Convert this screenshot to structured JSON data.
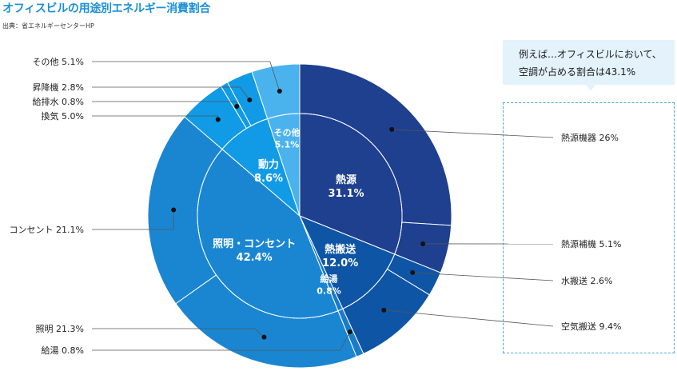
{
  "title": "オフィスビルの用途別エネルギー消費割合",
  "source": "出典：省エネルギーセンターHP",
  "callout": {
    "line1": "例えば…オフィスビルにおいて、",
    "line2": "空調が占める割合は43.1%"
  },
  "chart_data": {
    "type": "pie",
    "subtype": "nested-donut",
    "start": "12 o'clock, clockwise",
    "inner": [
      {
        "label": "熱源",
        "value": 31.1,
        "color": "#1f3f8f"
      },
      {
        "label": "熱搬送",
        "value": 12.0,
        "color": "#0f55a6"
      },
      {
        "label": "給湯",
        "value": 0.8,
        "color": "#1a7bc8"
      },
      {
        "label": "照明・コンセント",
        "value": 42.4,
        "color": "#1a86d2"
      },
      {
        "label": "動力",
        "value": 8.6,
        "color": "#119ae6"
      },
      {
        "label": "その他",
        "value": 5.1,
        "color": "#4ab3ee"
      }
    ],
    "outer": [
      {
        "label": "熱源機器",
        "value": 26,
        "display": "熱源機器 26%",
        "group": "熱源",
        "color": "#1f3f8f",
        "side": "right"
      },
      {
        "label": "熱源補機",
        "value": 5.1,
        "display": "熱源補機 5.1%",
        "group": "熱源",
        "color": "#1f3f8f",
        "side": "right"
      },
      {
        "label": "水搬送",
        "value": 2.6,
        "display": "水搬送 2.6%",
        "group": "熱搬送",
        "color": "#0f55a6",
        "side": "right"
      },
      {
        "label": "空気搬送",
        "value": 9.4,
        "display": "空気搬送 9.4%",
        "group": "熱搬送",
        "color": "#0f55a6",
        "side": "right"
      },
      {
        "label": "給湯",
        "value": 0.8,
        "display": "給湯 0.8%",
        "group": "給湯",
        "color": "#1a7bc8",
        "side": "left"
      },
      {
        "label": "照明",
        "value": 21.3,
        "display": "照明 21.3%",
        "group": "照明・コンセント",
        "color": "#1a86d2",
        "side": "left"
      },
      {
        "label": "コンセント",
        "value": 21.1,
        "display": "コンセント 21.1%",
        "group": "照明・コンセント",
        "color": "#1a86d2",
        "side": "left"
      },
      {
        "label": "換気",
        "value": 5.0,
        "display": "換気 5.0%",
        "group": "動力",
        "color": "#119ae6",
        "side": "left"
      },
      {
        "label": "給排水",
        "value": 0.8,
        "display": "給排水 0.8%",
        "group": "動力",
        "color": "#119ae6",
        "side": "left"
      },
      {
        "label": "昇降機",
        "value": 2.8,
        "display": "昇降機 2.8%",
        "group": "動力",
        "color": "#119ae6",
        "side": "left"
      },
      {
        "label": "その他",
        "value": 5.1,
        "display": "その他 5.1%",
        "group": "その他",
        "color": "#4ab3ee",
        "side": "left"
      }
    ]
  }
}
